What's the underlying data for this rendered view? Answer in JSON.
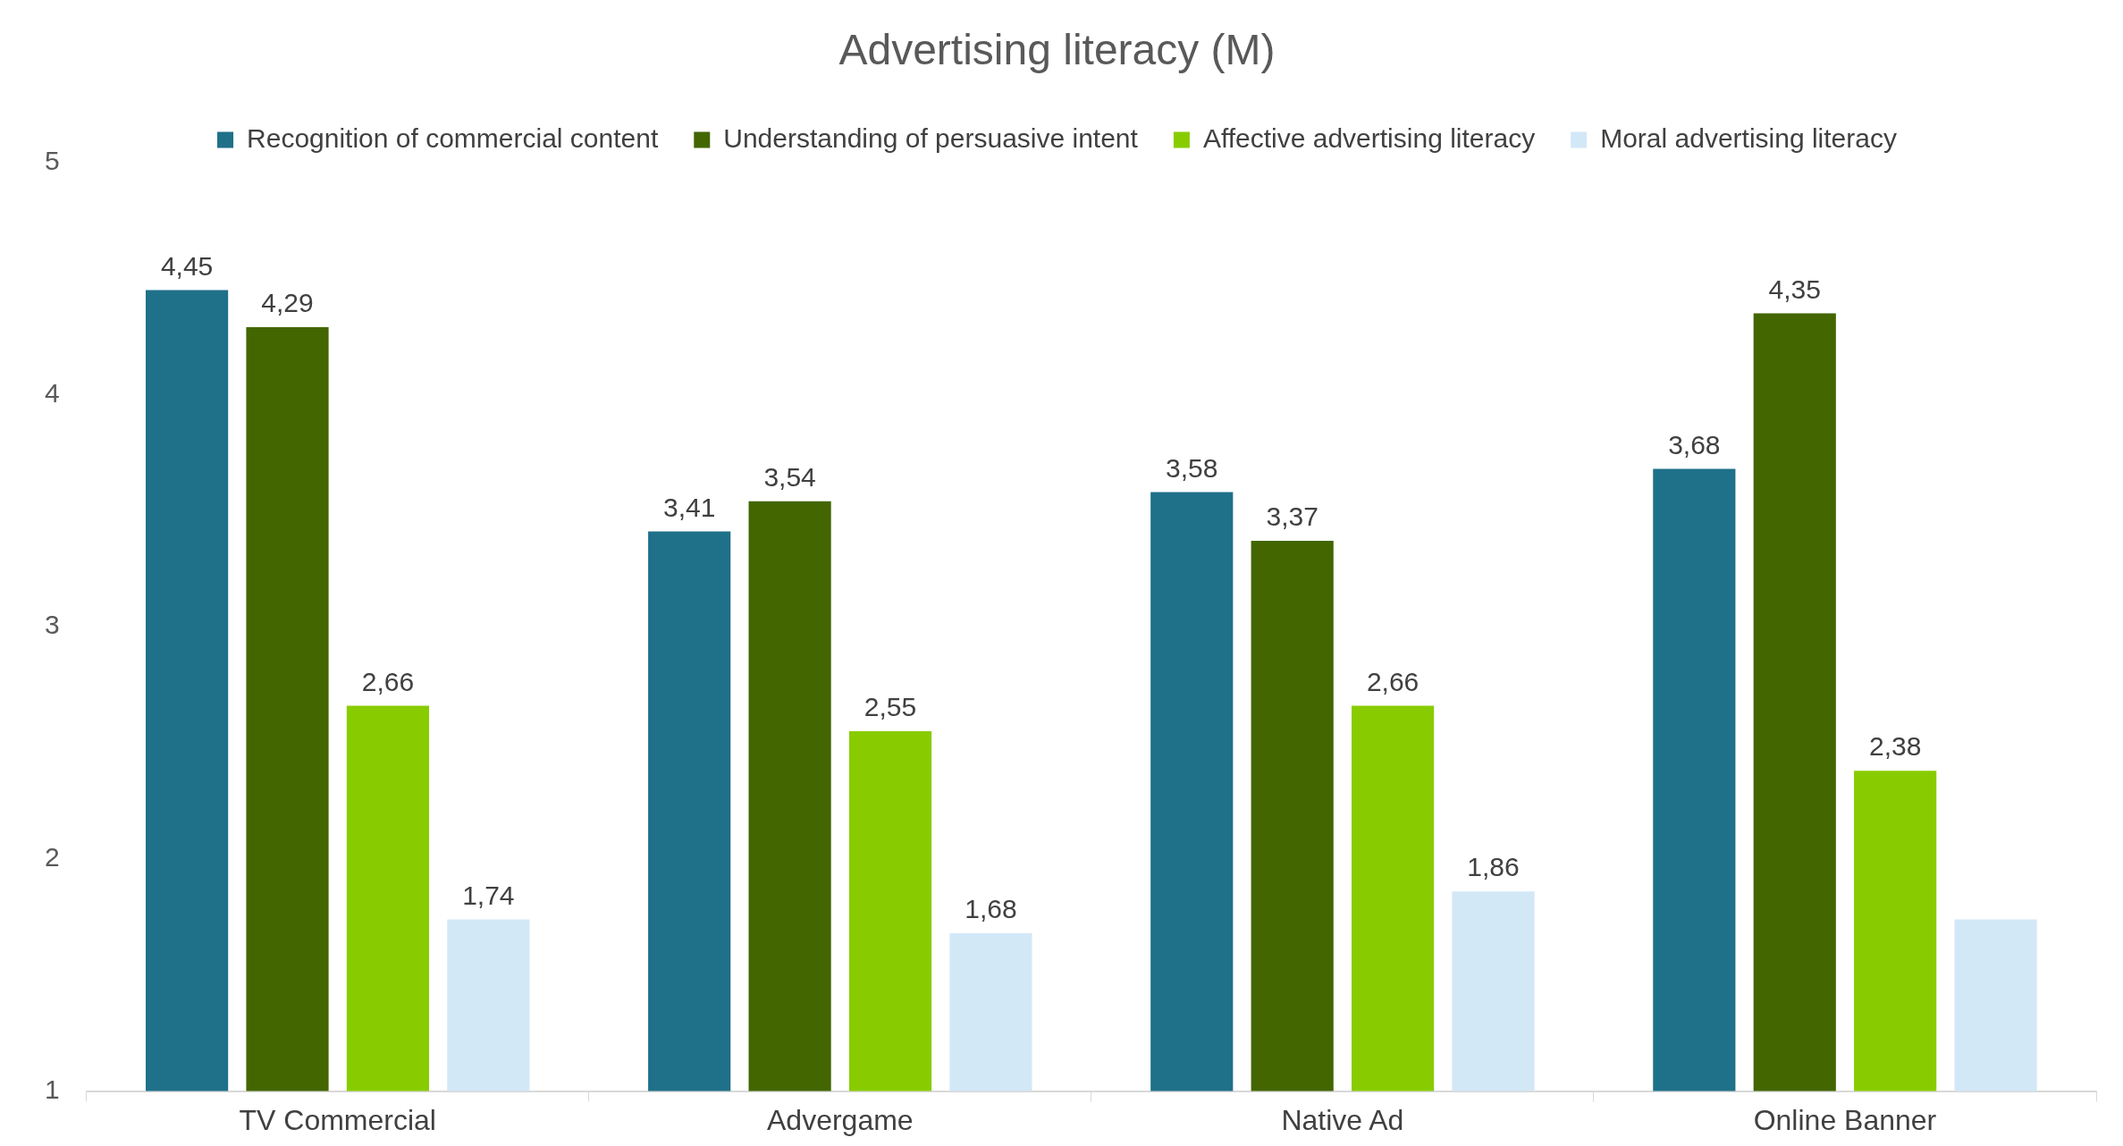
{
  "chart_data": {
    "type": "bar",
    "title": "Advertising literacy (M)",
    "categories": [
      "TV Commercial",
      "Advergame",
      "Native Ad",
      "Online Banner"
    ],
    "series": [
      {
        "name": "Recognition of commercial content",
        "color": "#1f7089",
        "values": [
          4.45,
          3.41,
          3.58,
          3.68
        ],
        "value_labels": [
          "4,45",
          "3,41",
          "3,58",
          "3,68"
        ]
      },
      {
        "name": "Understanding of persuasive intent",
        "color": "#436600",
        "values": [
          4.29,
          3.54,
          3.37,
          4.35
        ],
        "value_labels": [
          "4,29",
          "3,54",
          "3,37",
          "4,35"
        ]
      },
      {
        "name": "Affective advertising literacy",
        "color": "#88cc00",
        "values": [
          2.66,
          2.55,
          2.66,
          2.38
        ],
        "value_labels": [
          "2,66",
          "2,55",
          "2,66",
          "2,38"
        ]
      },
      {
        "name": "Moral advertising literacy",
        "color": "#d3e8f7",
        "values": [
          1.74,
          1.68,
          1.86,
          1.74
        ],
        "value_labels": [
          "1,74",
          "1,68",
          "1,86",
          null
        ]
      }
    ],
    "ylim": [
      1,
      5
    ],
    "yticks": [
      1,
      2,
      3,
      4,
      5
    ],
    "grid": false,
    "legend": "top"
  }
}
